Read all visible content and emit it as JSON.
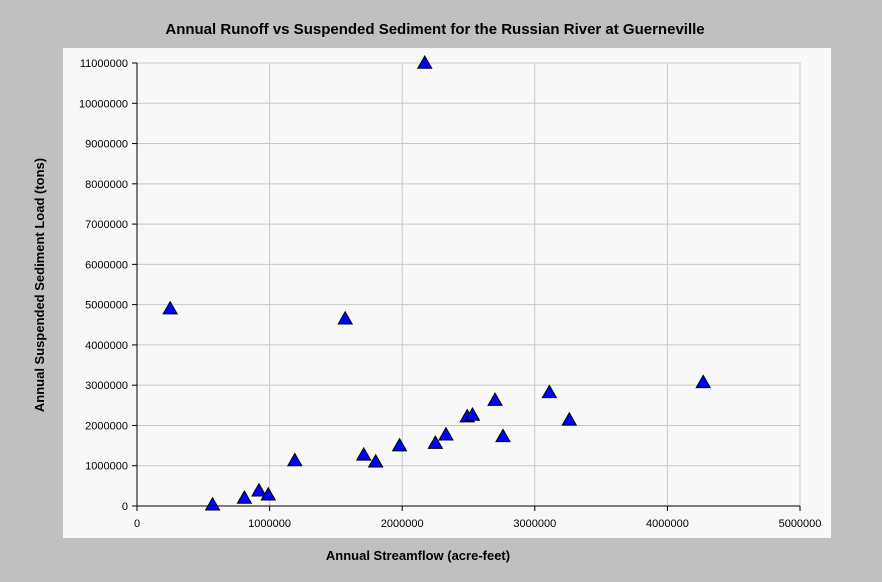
{
  "chart_data": {
    "type": "scatter",
    "title": "Annual Runoff vs Suspended Sediment for the Russian River at Guerneville",
    "xlabel": "Annual Streamflow (acre-feet)",
    "ylabel": "Annual Suspended Sediment Load (tons)",
    "xlim": [
      0,
      5000000
    ],
    "ylim": [
      0,
      11000000
    ],
    "x_ticks": [
      0,
      1000000,
      2000000,
      3000000,
      4000000,
      5000000
    ],
    "x_tick_labels": [
      "0",
      "1000000",
      "2000000",
      "3000000",
      "4000000",
      "5000000"
    ],
    "y_ticks": [
      0,
      1000000,
      2000000,
      3000000,
      4000000,
      5000000,
      6000000,
      7000000,
      8000000,
      9000000,
      10000000,
      11000000
    ],
    "y_tick_labels": [
      "0",
      "1000000",
      "2000000",
      "3000000",
      "4000000",
      "5000000",
      "6000000",
      "7000000",
      "8000000",
      "9000000",
      "10000000",
      "11000000"
    ],
    "grid": true,
    "marker": "triangle",
    "marker_color": "#0000ff",
    "points": [
      {
        "x": 250000,
        "y": 4900000
      },
      {
        "x": 570000,
        "y": 30000
      },
      {
        "x": 810000,
        "y": 200000
      },
      {
        "x": 920000,
        "y": 380000
      },
      {
        "x": 990000,
        "y": 280000
      },
      {
        "x": 1190000,
        "y": 1130000
      },
      {
        "x": 1570000,
        "y": 4650000
      },
      {
        "x": 1710000,
        "y": 1270000
      },
      {
        "x": 1800000,
        "y": 1100000
      },
      {
        "x": 1980000,
        "y": 1500000
      },
      {
        "x": 2170000,
        "y": 11000000
      },
      {
        "x": 2250000,
        "y": 1560000
      },
      {
        "x": 2330000,
        "y": 1770000
      },
      {
        "x": 2490000,
        "y": 2220000
      },
      {
        "x": 2530000,
        "y": 2260000
      },
      {
        "x": 2700000,
        "y": 2630000
      },
      {
        "x": 2760000,
        "y": 1730000
      },
      {
        "x": 3110000,
        "y": 2820000
      },
      {
        "x": 3260000,
        "y": 2140000
      },
      {
        "x": 4270000,
        "y": 3070000
      }
    ]
  }
}
